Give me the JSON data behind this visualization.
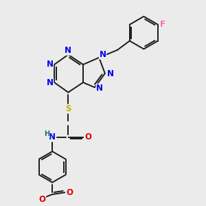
{
  "background_color": "#ebebeb",
  "bond_color": "#1a1a1a",
  "atom_colors": {
    "N": "#0000ee",
    "O": "#dd0000",
    "S": "#bbbb00",
    "F": "#ff69b4",
    "H": "#207070",
    "C": "#1a1a1a"
  },
  "font_size": 8.5,
  "lw": 1.4
}
